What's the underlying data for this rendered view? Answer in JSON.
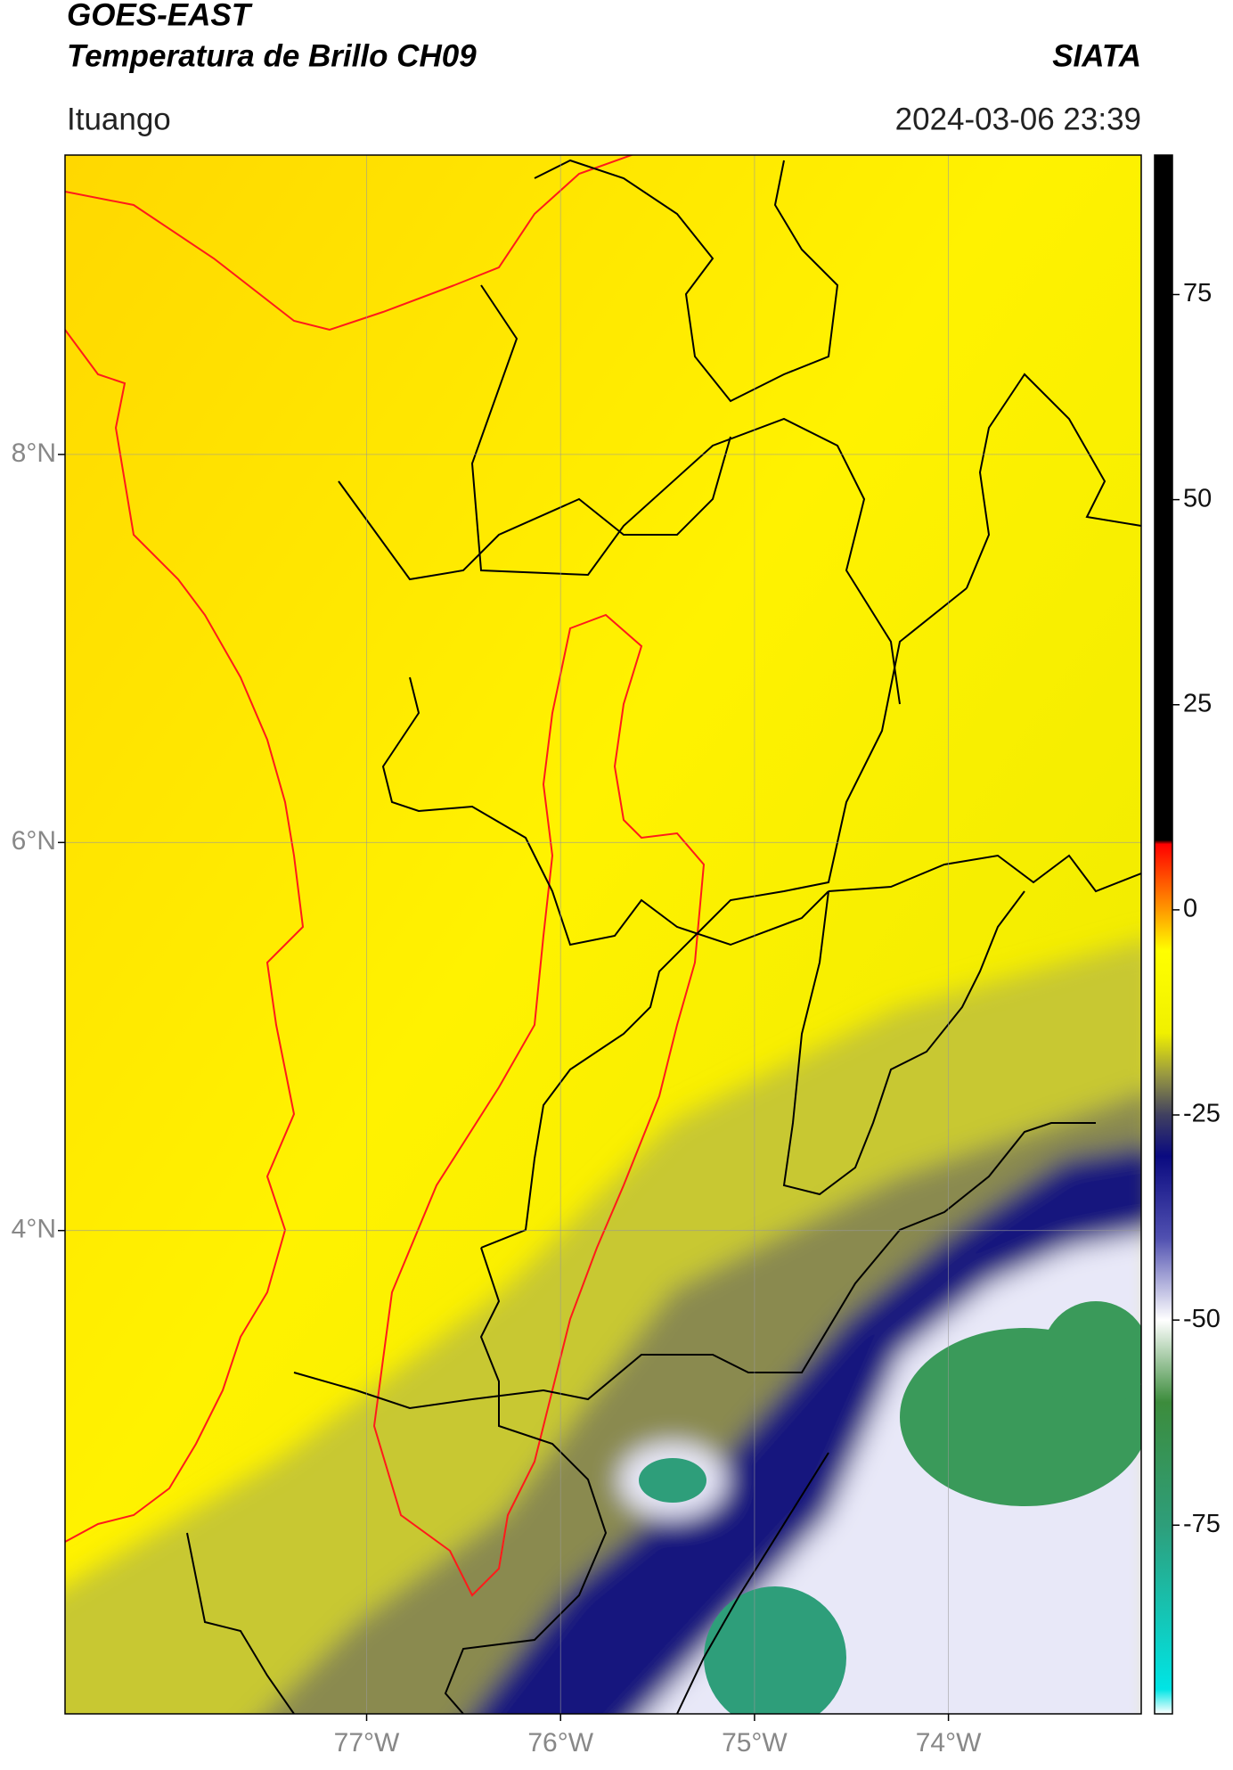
{
  "chart_data": {
    "type": "map",
    "title": "GOES-EAST",
    "subtitle": "Temperatura de Brillo CH09",
    "source": "SIATA",
    "location": "Ituango",
    "datetime": "2024-03-06 23:39",
    "xlim": [
      -78.555,
      -73.006
    ],
    "ylim": [
      1.509,
      9.543
    ],
    "xticks": [
      {
        "value": -77,
        "label": "77°W"
      },
      {
        "value": -76,
        "label": "76°W"
      },
      {
        "value": -75,
        "label": "75°W"
      },
      {
        "value": -74,
        "label": "74°W"
      }
    ],
    "yticks": [
      {
        "value": 4,
        "label": "4°N"
      },
      {
        "value": 6,
        "label": "6°N"
      },
      {
        "value": 8,
        "label": "8°N"
      }
    ],
    "grid": true,
    "colorbar": {
      "lim": [
        -98,
        92
      ],
      "ticks": [
        -75,
        -50,
        -25,
        0,
        25,
        50,
        75
      ],
      "colormap": [
        {
          "value": -98,
          "color": "#ffffff"
        },
        {
          "value": -95,
          "color": "#00e5e5"
        },
        {
          "value": -75,
          "color": "#2e9e7a"
        },
        {
          "value": -60,
          "color": "#3c8c3c"
        },
        {
          "value": -50,
          "color": "#ffffff"
        },
        {
          "value": -40,
          "color": "#5050b0"
        },
        {
          "value": -30,
          "color": "#0a0a80"
        },
        {
          "value": -25,
          "color": "#404060"
        },
        {
          "value": -20,
          "color": "#9a9a40"
        },
        {
          "value": -15,
          "color": "#f0f000"
        },
        {
          "value": -5,
          "color": "#ffff00"
        },
        {
          "value": 0,
          "color": "#ff9900"
        },
        {
          "value": 8,
          "color": "#ff0000"
        },
        {
          "value": 8.5,
          "color": "#000000"
        },
        {
          "value": 92,
          "color": "#000000"
        }
      ]
    }
  }
}
